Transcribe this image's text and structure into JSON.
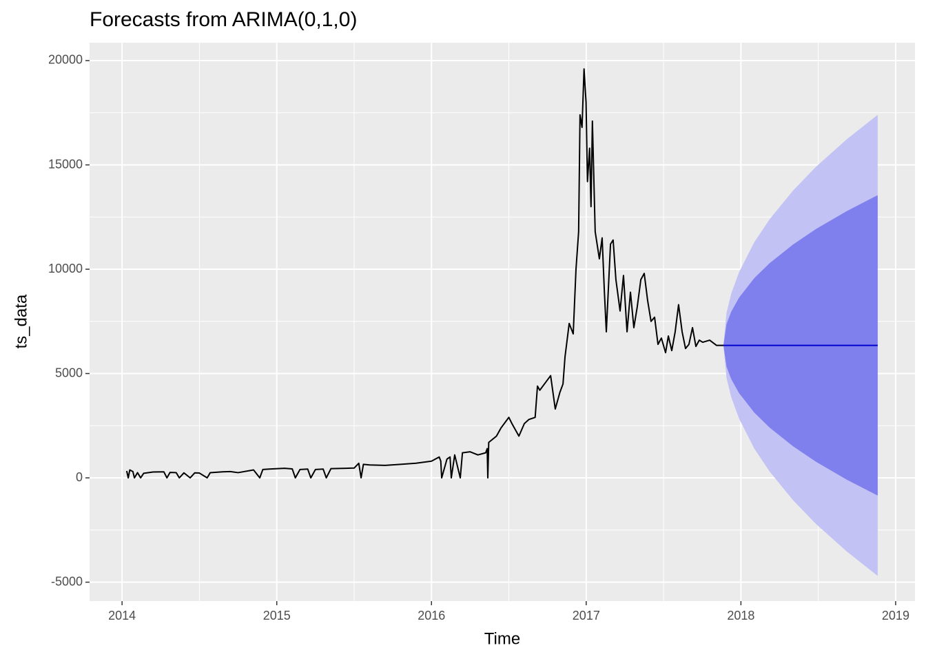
{
  "chart_data": {
    "type": "forecast",
    "title": "Forecasts from ARIMA(0,1,0)",
    "x_label": "Time",
    "y_label": "ts_data",
    "xlim": [
      2013.79,
      2019.125
    ],
    "ylim": [
      -5907,
      20858
    ],
    "xticks": [
      2014,
      2015,
      2016,
      2017,
      2018,
      2019
    ],
    "yticks": [
      -5000,
      0,
      5000,
      10000,
      15000,
      20000
    ],
    "grid": true,
    "color": "#000000",
    "x": [
      2014.03,
      2014.04,
      2014.05,
      2014.07,
      2014.08,
      2014.1,
      2014.12,
      2014.14,
      2014.2,
      2014.27,
      2014.29,
      2014.31,
      2014.35,
      2014.37,
      2014.4,
      2014.44,
      2014.47,
      2014.5,
      2014.55,
      2014.57,
      2014.65,
      2014.7,
      2014.75,
      2014.85,
      2014.89,
      2014.91,
      2014.95,
      2015.05,
      2015.1,
      2015.12,
      2015.15,
      2015.2,
      2015.22,
      2015.25,
      2015.3,
      2015.32,
      2015.35,
      2015.4,
      2015.45,
      2015.5,
      2015.53,
      2015.545,
      2015.56,
      2015.6,
      2015.7,
      2015.8,
      2015.9,
      2016.0,
      2016.05,
      2016.06,
      2016.066,
      2016.1,
      2016.12,
      2016.128,
      2016.15,
      2016.186,
      2016.2,
      2016.25,
      2016.3,
      2016.35,
      2016.36,
      2016.364,
      2016.37,
      2016.42,
      2016.45,
      2016.5,
      2016.52,
      2016.565,
      2016.6,
      2016.63,
      2016.67,
      2016.685,
      2016.7,
      2016.73,
      2016.77,
      2016.8,
      2016.83,
      2016.85,
      2016.863,
      2016.89,
      2016.916,
      2016.934,
      2016.951,
      2016.96,
      2016.973,
      2016.986,
      2016.999,
      2017.008,
      2017.022,
      2017.031,
      2017.04,
      2017.058,
      2017.085,
      2017.103,
      2017.117,
      2017.13,
      2017.157,
      2017.174,
      2017.192,
      2017.219,
      2017.241,
      2017.264,
      2017.286,
      2017.308,
      2017.33,
      2017.353,
      2017.375,
      2017.397,
      2017.419,
      2017.442,
      2017.464,
      2017.486,
      2017.513,
      2017.531,
      2017.553,
      2017.575,
      2017.597,
      2017.62,
      2017.642,
      2017.664,
      2017.687,
      2017.709,
      2017.731,
      2017.753,
      2017.798,
      2017.842,
      2017.887
    ],
    "values": [
      330,
      0,
      380,
      300,
      0,
      250,
      0,
      220,
      280,
      290,
      0,
      260,
      250,
      0,
      240,
      0,
      240,
      230,
      0,
      250,
      290,
      300,
      250,
      380,
      0,
      400,
      420,
      460,
      430,
      0,
      400,
      420,
      0,
      400,
      420,
      0,
      440,
      450,
      460,
      470,
      700,
      0,
      650,
      620,
      600,
      650,
      700,
      800,
      1000,
      800,
      0,
      900,
      1000,
      0,
      1100,
      0,
      1200,
      1250,
      1100,
      1200,
      1400,
      0,
      1700,
      2000,
      2400,
      2900,
      2600,
      2000,
      2600,
      2800,
      2900,
      4400,
      4200,
      4500,
      4900,
      3300,
      4100,
      4500,
      5800,
      7400,
      6900,
      10000,
      11800,
      17400,
      16800,
      19600,
      18000,
      14200,
      15800,
      13000,
      17100,
      11800,
      10500,
      11500,
      9000,
      7000,
      11200,
      11400,
      9500,
      8000,
      9700,
      7000,
      8900,
      7200,
      8200,
      9500,
      9800,
      8500,
      7500,
      7700,
      6400,
      6700,
      6000,
      6800,
      6100,
      7000,
      8300,
      7000,
      6200,
      6400,
      7200,
      6300,
      6600,
      6500,
      6600,
      6350,
      6350
    ],
    "forecast": {
      "x": [
        2017.887,
        2017.907,
        2017.937,
        2017.987,
        2018.086,
        2018.186,
        2018.336,
        2018.485,
        2018.685,
        2018.884
      ],
      "mean": [
        6350,
        6350,
        6350,
        6350,
        6350,
        6350,
        6350,
        6350,
        6350,
        6350
      ],
      "lo80": [
        6350,
        5332,
        4740,
        4073,
        3130,
        2407,
        1520,
        773,
        -90,
        -850
      ],
      "hi80": [
        6350,
        7368,
        7960,
        8627,
        9570,
        10293,
        11180,
        11927,
        12790,
        13550
      ],
      "lo95": [
        6350,
        4787,
        3879,
        2856,
        1408,
        298,
        -1062,
        -2209,
        -3533,
        -4700
      ],
      "hi95": [
        6350,
        7913,
        8821,
        9844,
        11292,
        12402,
        13762,
        14909,
        16233,
        17400
      ],
      "mean_color": "#0000cc",
      "color80": "#7f7fee",
      "color95": "#c2c2f5"
    }
  }
}
